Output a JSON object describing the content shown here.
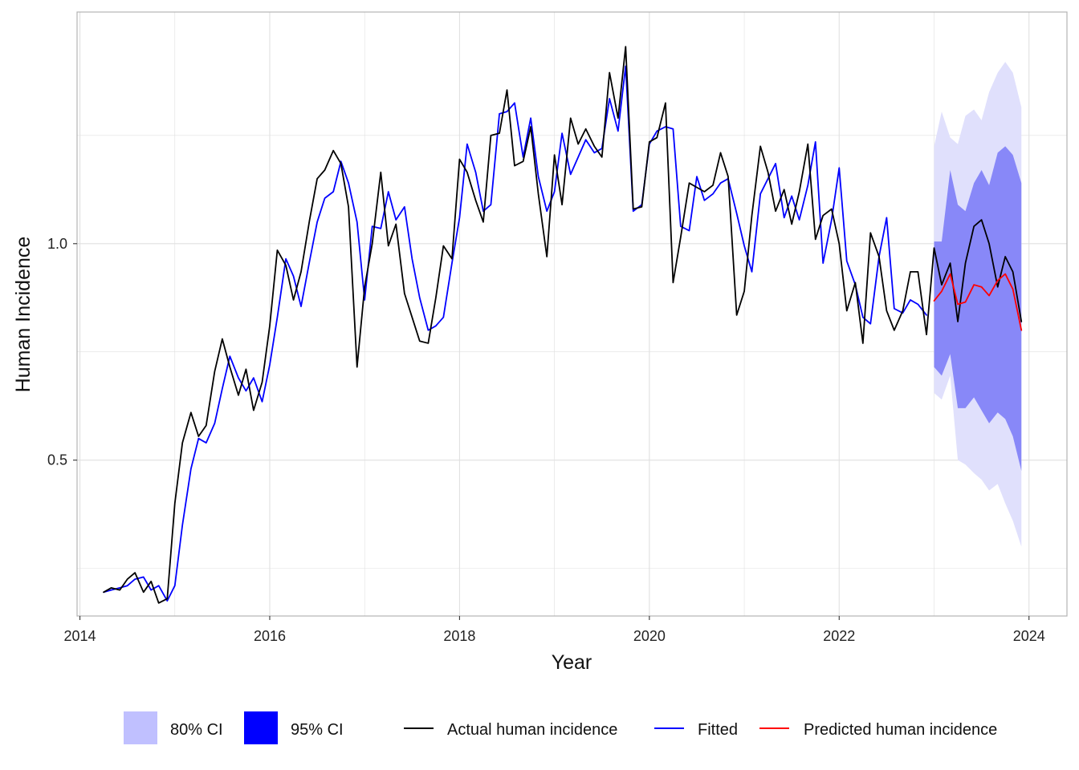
{
  "chart_data": {
    "type": "line",
    "xlabel": "Year",
    "ylabel": "Human Incidence",
    "xlim": [
      2013.97,
      2024.4
    ],
    "ylim": [
      0.14,
      1.535
    ],
    "x_ticks": [
      2014,
      2016,
      2018,
      2020,
      2022,
      2024
    ],
    "x_tick_labels": [
      "2014",
      "2016",
      "2018",
      "2020",
      "2022",
      "2024"
    ],
    "y_ticks": [
      0.5,
      1.0
    ],
    "y_tick_labels": [
      "0.5",
      "1.0"
    ],
    "y_minor_gridlines": [
      0.25,
      0.75,
      1.25
    ],
    "grid": true,
    "legend_position": "bottom",
    "legend": {
      "ci80": "80% CI",
      "ci95": "95% CI",
      "actual": "Actual human incidence",
      "fitted": "Fitted",
      "predicted": "Predicted human incidence"
    },
    "colors": {
      "actual": "#000000",
      "fitted": "#0000ff",
      "predicted": "#ff0000",
      "ci80_fill": "#e0e0fc",
      "ci95_fill": "#8888f8",
      "ci80_legend": "#c0c0ff",
      "ci95_legend": "#0000ff",
      "grid": "#e0e0e0",
      "border": "#b3b3b3"
    },
    "series": [
      {
        "name": "Actual human incidence",
        "points": [
          [
            2014.25,
            0.195
          ],
          [
            2014.33,
            0.205
          ],
          [
            2014.42,
            0.2
          ],
          [
            2014.5,
            0.225
          ],
          [
            2014.58,
            0.24
          ],
          [
            2014.67,
            0.195
          ],
          [
            2014.75,
            0.22
          ],
          [
            2014.83,
            0.17
          ],
          [
            2014.92,
            0.18
          ],
          [
            2015.0,
            0.4
          ],
          [
            2015.08,
            0.54
          ],
          [
            2015.17,
            0.61
          ],
          [
            2015.25,
            0.555
          ],
          [
            2015.33,
            0.58
          ],
          [
            2015.42,
            0.705
          ],
          [
            2015.5,
            0.78
          ],
          [
            2015.58,
            0.715
          ],
          [
            2015.67,
            0.65
          ],
          [
            2015.75,
            0.71
          ],
          [
            2015.83,
            0.615
          ],
          [
            2015.92,
            0.68
          ],
          [
            2016.0,
            0.81
          ],
          [
            2016.08,
            0.985
          ],
          [
            2016.17,
            0.95
          ],
          [
            2016.25,
            0.87
          ],
          [
            2016.33,
            0.935
          ],
          [
            2016.42,
            1.055
          ],
          [
            2016.5,
            1.15
          ],
          [
            2016.58,
            1.17
          ],
          [
            2016.67,
            1.215
          ],
          [
            2016.75,
            1.185
          ],
          [
            2016.83,
            1.085
          ],
          [
            2016.92,
            0.715
          ],
          [
            2017.0,
            0.9
          ],
          [
            2017.08,
            1.0
          ],
          [
            2017.17,
            1.165
          ],
          [
            2017.25,
            0.995
          ],
          [
            2017.33,
            1.045
          ],
          [
            2017.42,
            0.885
          ],
          [
            2017.5,
            0.83
          ],
          [
            2017.58,
            0.775
          ],
          [
            2017.67,
            0.77
          ],
          [
            2017.75,
            0.875
          ],
          [
            2017.83,
            0.995
          ],
          [
            2017.92,
            0.965
          ],
          [
            2018.0,
            1.195
          ],
          [
            2018.08,
            1.165
          ],
          [
            2018.17,
            1.1
          ],
          [
            2018.25,
            1.05
          ],
          [
            2018.33,
            1.25
          ],
          [
            2018.42,
            1.255
          ],
          [
            2018.5,
            1.355
          ],
          [
            2018.58,
            1.18
          ],
          [
            2018.67,
            1.19
          ],
          [
            2018.75,
            1.27
          ],
          [
            2018.83,
            1.115
          ],
          [
            2018.92,
            0.97
          ],
          [
            2019.0,
            1.205
          ],
          [
            2019.08,
            1.09
          ],
          [
            2019.17,
            1.29
          ],
          [
            2019.25,
            1.23
          ],
          [
            2019.33,
            1.265
          ],
          [
            2019.42,
            1.225
          ],
          [
            2019.5,
            1.2
          ],
          [
            2019.58,
            1.395
          ],
          [
            2019.67,
            1.29
          ],
          [
            2019.75,
            1.455
          ],
          [
            2019.83,
            1.08
          ],
          [
            2019.92,
            1.085
          ],
          [
            2020.0,
            1.235
          ],
          [
            2020.08,
            1.245
          ],
          [
            2020.17,
            1.325
          ],
          [
            2020.25,
            0.91
          ],
          [
            2020.33,
            1.015
          ],
          [
            2020.42,
            1.14
          ],
          [
            2020.5,
            1.13
          ],
          [
            2020.58,
            1.12
          ],
          [
            2020.67,
            1.135
          ],
          [
            2020.75,
            1.21
          ],
          [
            2020.83,
            1.155
          ],
          [
            2020.92,
            0.835
          ],
          [
            2021.0,
            0.89
          ],
          [
            2021.08,
            1.065
          ],
          [
            2021.17,
            1.225
          ],
          [
            2021.25,
            1.165
          ],
          [
            2021.33,
            1.075
          ],
          [
            2021.42,
            1.125
          ],
          [
            2021.5,
            1.045
          ],
          [
            2021.58,
            1.12
          ],
          [
            2021.67,
            1.23
          ],
          [
            2021.75,
            1.01
          ],
          [
            2021.83,
            1.065
          ],
          [
            2021.92,
            1.08
          ],
          [
            2022.0,
            1.0
          ],
          [
            2022.08,
            0.845
          ],
          [
            2022.17,
            0.91
          ],
          [
            2022.25,
            0.77
          ],
          [
            2022.33,
            1.025
          ],
          [
            2022.42,
            0.97
          ],
          [
            2022.5,
            0.845
          ],
          [
            2022.58,
            0.8
          ],
          [
            2022.67,
            0.845
          ],
          [
            2022.75,
            0.935
          ],
          [
            2022.83,
            0.935
          ],
          [
            2022.92,
            0.79
          ],
          [
            2023.0,
            0.99
          ],
          [
            2023.08,
            0.905
          ],
          [
            2023.17,
            0.955
          ],
          [
            2023.25,
            0.82
          ],
          [
            2023.33,
            0.955
          ],
          [
            2023.42,
            1.04
          ],
          [
            2023.5,
            1.055
          ],
          [
            2023.58,
            1.0
          ],
          [
            2023.67,
            0.9
          ],
          [
            2023.75,
            0.97
          ],
          [
            2023.83,
            0.935
          ],
          [
            2023.92,
            0.82
          ]
        ]
      },
      {
        "name": "Fitted",
        "points": [
          [
            2014.25,
            0.195
          ],
          [
            2014.33,
            0.2
          ],
          [
            2014.42,
            0.205
          ],
          [
            2014.5,
            0.21
          ],
          [
            2014.58,
            0.225
          ],
          [
            2014.67,
            0.23
          ],
          [
            2014.75,
            0.2
          ],
          [
            2014.83,
            0.21
          ],
          [
            2014.92,
            0.175
          ],
          [
            2015.0,
            0.21
          ],
          [
            2015.08,
            0.35
          ],
          [
            2015.17,
            0.48
          ],
          [
            2015.25,
            0.55
          ],
          [
            2015.33,
            0.54
          ],
          [
            2015.42,
            0.585
          ],
          [
            2015.5,
            0.665
          ],
          [
            2015.58,
            0.74
          ],
          [
            2015.67,
            0.69
          ],
          [
            2015.75,
            0.66
          ],
          [
            2015.83,
            0.69
          ],
          [
            2015.92,
            0.635
          ],
          [
            2016.0,
            0.72
          ],
          [
            2016.08,
            0.83
          ],
          [
            2016.17,
            0.965
          ],
          [
            2016.25,
            0.925
          ],
          [
            2016.33,
            0.855
          ],
          [
            2016.42,
            0.96
          ],
          [
            2016.5,
            1.05
          ],
          [
            2016.58,
            1.105
          ],
          [
            2016.67,
            1.12
          ],
          [
            2016.75,
            1.19
          ],
          [
            2016.83,
            1.14
          ],
          [
            2016.92,
            1.05
          ],
          [
            2017.0,
            0.87
          ],
          [
            2017.08,
            1.04
          ],
          [
            2017.17,
            1.035
          ],
          [
            2017.25,
            1.12
          ],
          [
            2017.33,
            1.055
          ],
          [
            2017.42,
            1.085
          ],
          [
            2017.5,
            0.965
          ],
          [
            2017.58,
            0.875
          ],
          [
            2017.67,
            0.8
          ],
          [
            2017.75,
            0.81
          ],
          [
            2017.83,
            0.83
          ],
          [
            2017.92,
            0.955
          ],
          [
            2018.0,
            1.06
          ],
          [
            2018.08,
            1.23
          ],
          [
            2018.17,
            1.165
          ],
          [
            2018.25,
            1.075
          ],
          [
            2018.33,
            1.09
          ],
          [
            2018.42,
            1.3
          ],
          [
            2018.5,
            1.305
          ],
          [
            2018.58,
            1.325
          ],
          [
            2018.67,
            1.2
          ],
          [
            2018.75,
            1.29
          ],
          [
            2018.83,
            1.155
          ],
          [
            2018.92,
            1.075
          ],
          [
            2019.0,
            1.12
          ],
          [
            2019.08,
            1.255
          ],
          [
            2019.17,
            1.16
          ],
          [
            2019.25,
            1.2
          ],
          [
            2019.33,
            1.24
          ],
          [
            2019.42,
            1.21
          ],
          [
            2019.5,
            1.22
          ],
          [
            2019.58,
            1.335
          ],
          [
            2019.67,
            1.26
          ],
          [
            2019.75,
            1.41
          ],
          [
            2019.83,
            1.075
          ],
          [
            2019.92,
            1.09
          ],
          [
            2020.0,
            1.23
          ],
          [
            2020.08,
            1.26
          ],
          [
            2020.17,
            1.27
          ],
          [
            2020.25,
            1.265
          ],
          [
            2020.33,
            1.04
          ],
          [
            2020.42,
            1.03
          ],
          [
            2020.5,
            1.155
          ],
          [
            2020.58,
            1.1
          ],
          [
            2020.67,
            1.115
          ],
          [
            2020.75,
            1.14
          ],
          [
            2020.83,
            1.15
          ],
          [
            2020.92,
            1.07
          ],
          [
            2021.0,
            0.995
          ],
          [
            2021.08,
            0.935
          ],
          [
            2021.17,
            1.115
          ],
          [
            2021.25,
            1.15
          ],
          [
            2021.33,
            1.185
          ],
          [
            2021.42,
            1.06
          ],
          [
            2021.5,
            1.11
          ],
          [
            2021.58,
            1.055
          ],
          [
            2021.67,
            1.135
          ],
          [
            2021.75,
            1.235
          ],
          [
            2021.83,
            0.955
          ],
          [
            2021.92,
            1.055
          ],
          [
            2022.0,
            1.175
          ],
          [
            2022.08,
            0.96
          ],
          [
            2022.17,
            0.905
          ],
          [
            2022.25,
            0.83
          ],
          [
            2022.33,
            0.815
          ],
          [
            2022.42,
            0.97
          ],
          [
            2022.5,
            1.06
          ],
          [
            2022.58,
            0.85
          ],
          [
            2022.67,
            0.84
          ],
          [
            2022.75,
            0.87
          ],
          [
            2022.83,
            0.86
          ],
          [
            2022.92,
            0.835
          ]
        ]
      },
      {
        "name": "Predicted human incidence",
        "points": [
          [
            2023.0,
            0.868
          ],
          [
            2023.08,
            0.89
          ],
          [
            2023.17,
            0.93
          ],
          [
            2023.25,
            0.86
          ],
          [
            2023.33,
            0.865
          ],
          [
            2023.42,
            0.905
          ],
          [
            2023.5,
            0.9
          ],
          [
            2023.58,
            0.88
          ],
          [
            2023.67,
            0.915
          ],
          [
            2023.75,
            0.93
          ],
          [
            2023.83,
            0.895
          ],
          [
            2023.92,
            0.8
          ]
        ]
      }
    ],
    "ribbons": [
      {
        "level": "80% CI",
        "x": [
          2023.0,
          2023.08,
          2023.17,
          2023.25,
          2023.33,
          2023.42,
          2023.5,
          2023.58,
          2023.67,
          2023.75,
          2023.83,
          2023.92
        ],
        "lower": [
          0.655,
          0.64,
          0.695,
          0.5,
          0.49,
          0.47,
          0.455,
          0.43,
          0.445,
          0.4,
          0.36,
          0.3
        ],
        "upper": [
          1.225,
          1.305,
          1.245,
          1.23,
          1.295,
          1.31,
          1.285,
          1.35,
          1.395,
          1.42,
          1.395,
          1.315
        ]
      },
      {
        "level": "95% CI",
        "x": [
          2023.0,
          2023.08,
          2023.17,
          2023.25,
          2023.33,
          2023.42,
          2023.5,
          2023.58,
          2023.67,
          2023.75,
          2023.83,
          2023.92
        ],
        "lower": [
          0.715,
          0.695,
          0.745,
          0.62,
          0.62,
          0.645,
          0.615,
          0.585,
          0.61,
          0.595,
          0.555,
          0.475
        ],
        "upper": [
          1.005,
          1.005,
          1.17,
          1.09,
          1.075,
          1.14,
          1.17,
          1.135,
          1.21,
          1.225,
          1.205,
          1.14
        ]
      }
    ]
  }
}
